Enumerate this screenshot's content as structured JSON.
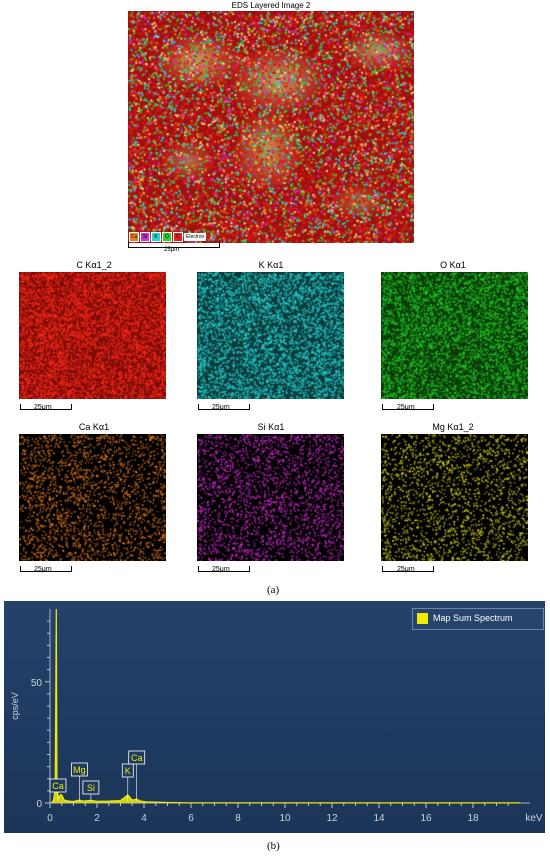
{
  "layered_image": {
    "title": "EDS Layered Image 2",
    "chips": [
      {
        "label": "Ca",
        "color": "#e8821e"
      },
      {
        "label": "Si",
        "color": "#d02fd0"
      },
      {
        "label": "K",
        "color": "#27d3d3"
      },
      {
        "label": "O",
        "color": "#2fd02f"
      },
      {
        "label": "C",
        "color": "#e02020"
      }
    ],
    "chip_text": "Electron",
    "scale_label": "25μm"
  },
  "maps": [
    {
      "title": "C Kα1_2",
      "color": "#ff2a1a",
      "bg": "#7a0c08",
      "density": 0.55,
      "scale": "25μm"
    },
    {
      "title": "K Kα1",
      "color": "#28d8d8",
      "bg": "#0b3c3c",
      "density": 0.42,
      "scale": "25μm"
    },
    {
      "title": "O Kα1",
      "color": "#22d022",
      "bg": "#0a3c0a",
      "density": 0.4,
      "scale": "25μm"
    },
    {
      "title": "Ca Kα1",
      "color": "#e87c1c",
      "bg": "#000000",
      "density": 0.22,
      "scale": "25μm"
    },
    {
      "title": "Si Kα1",
      "color": "#d22ad2",
      "bg": "#000000",
      "density": 0.25,
      "scale": "25μm"
    },
    {
      "title": "Mg Kα1_2",
      "color": "#d8d820",
      "bg": "#000000",
      "density": 0.2,
      "scale": "25μm"
    }
  ],
  "panel_a": "(a)",
  "panel_b": "(b)",
  "chart_data": {
    "type": "line",
    "title": "",
    "xlabel": "keV",
    "ylabel": "cps/eV",
    "xlim": [
      0,
      20
    ],
    "ylim": [
      0,
      80
    ],
    "x_ticks": [
      "0",
      "2",
      "4",
      "6",
      "8",
      "10",
      "12",
      "14",
      "16",
      "18"
    ],
    "x_tick_values": [
      0,
      2,
      4,
      6,
      8,
      10,
      12,
      14,
      16,
      18
    ],
    "y_ticks": [
      "0",
      "50"
    ],
    "y_tick_values": [
      0,
      50
    ],
    "legend": "Map Sum Spectrum",
    "legend_position": "top-right",
    "series": [
      {
        "name": "Map Sum Spectrum",
        "color": "#f2ea00",
        "x": [
          0.05,
          0.15,
          0.22,
          0.27,
          0.3,
          0.35,
          0.45,
          0.52,
          0.6,
          0.8,
          1.0,
          1.25,
          1.4,
          1.74,
          2.0,
          2.5,
          3.0,
          3.31,
          3.5,
          3.69,
          3.85,
          4.1,
          5,
          6,
          8,
          10,
          12,
          14,
          16,
          18,
          20
        ],
        "y": [
          0,
          1,
          6,
          80,
          6,
          2,
          3.5,
          3,
          1.2,
          0.8,
          0.6,
          1.2,
          0.8,
          1.1,
          0.7,
          0.8,
          1.0,
          3.3,
          1.2,
          1.6,
          0.8,
          0.5,
          0.2,
          0.1,
          0.1,
          0.1,
          0.05,
          0.05,
          0.05,
          0.05,
          0.05
        ]
      }
    ],
    "annotations": [
      {
        "label": "Ca",
        "x": 0.34
      },
      {
        "label": "Mg",
        "x": 1.25
      },
      {
        "label": "Si",
        "x": 1.74
      },
      {
        "label": "K",
        "x": 3.31
      },
      {
        "label": "Ca",
        "x": 3.69
      }
    ]
  }
}
